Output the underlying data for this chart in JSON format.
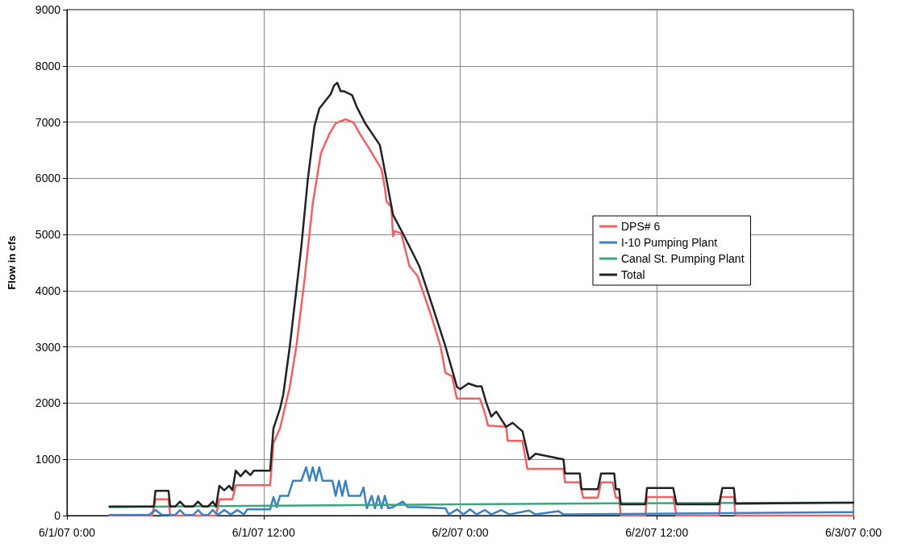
{
  "chart_data": {
    "type": "line",
    "ylabel": "Flow in cfs",
    "xlim": [
      "--06-01T00:00",
      "--06-03T00:00"
    ],
    "xticks": [
      {
        "value": "--06-01T00:00",
        "label": "6/1/07 0:00"
      },
      {
        "value": "--06-01T12:00",
        "label": "6/1/07 12:00"
      },
      {
        "value": "--06-02T00:00",
        "label": "6/2/07 0:00"
      },
      {
        "value": "--06-02T12:00",
        "label": "6/2/07 12:00"
      },
      {
        "value": "--06-03T00:00",
        "label": "6/3/07 0:00"
      }
    ],
    "ylim": [
      0,
      9000
    ],
    "yticks": [
      0,
      1000,
      2000,
      3000,
      4000,
      5000,
      6000,
      7000,
      8000,
      9000
    ],
    "grid": true,
    "legend": "right",
    "marker": "none",
    "line_style": "solid",
    "series": [
      {
        "name": "DPS# 6",
        "color": "#f65f5f",
        "x": [
          "--06-01T02:36",
          "--06-01T05:12",
          "--06-01T05:24",
          "--06-01T06:12",
          "--06-01T06:18",
          "--06-01T09:06",
          "--06-01T09:18",
          "--06-01T10:06",
          "--06-01T10:18",
          "--06-01T12:24",
          "--06-01T12:36",
          "--06-01T13:00",
          "--06-01T13:36",
          "--06-01T14:00",
          "--06-01T14:30",
          "--06-01T15:00",
          "--06-01T15:30",
          "--06-01T16:00",
          "--06-01T16:24",
          "--06-01T17:00",
          "--06-01T17:30",
          "--06-01T17:54",
          "--06-01T18:24",
          "--06-01T19:12",
          "--06-01T19:24",
          "--06-01T19:30",
          "--06-01T19:48",
          "--06-01T19:54",
          "--06-01T20:00",
          "--06-01T20:24",
          "--06-01T20:54",
          "--06-01T21:24",
          "--06-01T22:12",
          "--06-01T22:48",
          "--06-01T23:06",
          "--06-01T23:30",
          "--06-01T23:48",
          "--06-02T01:12",
          "--06-02T01:30",
          "--06-02T01:42",
          "--06-02T02:48",
          "--06-02T02:54",
          "--06-02T03:48",
          "--06-02T04:06",
          "--06-02T06:18",
          "--06-02T06:24",
          "--06-02T07:18",
          "--06-02T07:30",
          "--06-02T08:24",
          "--06-02T08:36",
          "--06-02T09:18",
          "--06-02T09:30",
          "--06-02T09:42",
          "--06-02T09:48",
          "--06-02T11:18",
          "--06-02T11:24",
          "--06-02T13:00",
          "--06-02T13:12",
          "--06-02T15:48",
          "--06-02T15:54",
          "--06-02T16:42",
          "--06-02T16:48",
          "--06-03T00:00"
        ],
        "values": [
          0,
          0,
          290,
          290,
          0,
          0,
          290,
          290,
          540,
          540,
          1290,
          1550,
          2290,
          3010,
          4200,
          5550,
          6450,
          6780,
          6980,
          7050,
          6990,
          6780,
          6550,
          6160,
          5830,
          5590,
          5490,
          4970,
          5060,
          5020,
          4440,
          4260,
          3580,
          3010,
          2540,
          2480,
          2080,
          2080,
          1830,
          1600,
          1580,
          1330,
          1330,
          830,
          830,
          590,
          590,
          320,
          320,
          590,
          590,
          320,
          320,
          0,
          0,
          330,
          330,
          0,
          0,
          330,
          330,
          0,
          0
        ]
      },
      {
        "name": "I-10 Pumping Plant",
        "color": "#3a80c4",
        "x": [
          "--06-01T02:36",
          "--06-01T05:00",
          "--06-01T05:24",
          "--06-01T05:48",
          "--06-01T06:36",
          "--06-01T06:54",
          "--06-01T07:12",
          "--06-01T07:42",
          "--06-01T08:00",
          "--06-01T08:18",
          "--06-01T08:36",
          "--06-01T08:54",
          "--06-01T09:12",
          "--06-01T09:36",
          "--06-01T10:00",
          "--06-01T10:24",
          "--06-01T10:48",
          "--06-01T11:00",
          "--06-01T12:24",
          "--06-01T12:36",
          "--06-01T12:48",
          "--06-01T13:00",
          "--06-01T13:30",
          "--06-01T13:48",
          "--06-01T14:18",
          "--06-01T14:36",
          "--06-01T14:48",
          "--06-01T15:00",
          "--06-01T15:12",
          "--06-01T15:24",
          "--06-01T15:36",
          "--06-01T16:12",
          "--06-01T16:24",
          "--06-01T16:36",
          "--06-01T16:48",
          "--06-01T17:00",
          "--06-01T17:12",
          "--06-01T17:54",
          "--06-01T18:06",
          "--06-01T18:18",
          "--06-01T18:36",
          "--06-01T18:48",
          "--06-01T19:00",
          "--06-01T19:12",
          "--06-01T19:24",
          "--06-01T19:36",
          "--06-01T19:54",
          "--06-01T20:30",
          "--06-01T20:48",
          "--06-01T21:30",
          "--06-01T23:06",
          "--06-01T23:18",
          "--06-01T23:48",
          "--06-02T00:12",
          "--06-02T00:36",
          "--06-02T01:00",
          "--06-02T01:30",
          "--06-02T01:54",
          "--06-02T02:30",
          "--06-02T03:00",
          "--06-02T04:12",
          "--06-02T04:36",
          "--06-02T06:00",
          "--06-02T06:18",
          "--06-02T09:48",
          "--06-03T00:00"
        ],
        "values": [
          10,
          10,
          100,
          10,
          10,
          100,
          10,
          10,
          100,
          10,
          10,
          100,
          10,
          100,
          20,
          100,
          20,
          110,
          110,
          330,
          150,
          350,
          350,
          620,
          620,
          860,
          620,
          860,
          620,
          860,
          620,
          620,
          350,
          620,
          350,
          620,
          350,
          350,
          500,
          130,
          350,
          130,
          350,
          130,
          350,
          130,
          150,
          250,
          150,
          150,
          130,
          20,
          110,
          20,
          110,
          20,
          100,
          20,
          100,
          20,
          90,
          20,
          80,
          20,
          30,
          60
        ]
      },
      {
        "name": "Canal St. Pumping Plant",
        "color": "#3aa67c",
        "x": [
          "--06-01T02:36",
          "--06-01T09:12",
          "--06-02T00:00",
          "--06-02T09:48",
          "--06-03T00:00"
        ],
        "values": [
          150,
          170,
          200,
          220,
          230
        ]
      },
      {
        "name": "Total",
        "color": "#222222",
        "x": [
          "--06-01T02:36",
          "--06-01T05:18",
          "--06-01T05:24",
          "--06-01T06:12",
          "--06-01T06:18",
          "--06-01T06:36",
          "--06-01T06:54",
          "--06-01T07:12",
          "--06-01T07:42",
          "--06-01T08:00",
          "--06-01T08:18",
          "--06-01T08:36",
          "--06-01T08:54",
          "--06-01T09:06",
          "--06-01T09:18",
          "--06-01T09:36",
          "--06-01T09:54",
          "--06-01T10:06",
          "--06-01T10:18",
          "--06-01T10:36",
          "--06-01T10:54",
          "--06-01T11:12",
          "--06-01T11:24",
          "--06-01T12:24",
          "--06-01T12:36",
          "--06-01T13:00",
          "--06-01T13:12",
          "--06-01T13:36",
          "--06-01T14:18",
          "--06-01T14:42",
          "--06-01T15:06",
          "--06-01T15:24",
          "--06-01T16:06",
          "--06-01T16:18",
          "--06-01T16:30",
          "--06-01T16:42",
          "--06-01T16:54",
          "--06-01T17:24",
          "--06-01T17:42",
          "--06-01T18:12",
          "--06-01T19:06",
          "--06-01T19:30",
          "--06-01T19:54",
          "--06-01T20:30",
          "--06-01T21:30",
          "--06-01T22:18",
          "--06-01T23:06",
          "--06-01T23:48",
          "--06-02T00:00",
          "--06-02T00:30",
          "--06-02T01:00",
          "--06-02T01:18",
          "--06-02T01:36",
          "--06-02T01:54",
          "--06-02T02:12",
          "--06-02T02:48",
          "--06-02T03:12",
          "--06-02T03:48",
          "--06-02T04:12",
          "--06-02T04:36",
          "--06-02T06:18",
          "--06-02T06:24",
          "--06-02T07:18",
          "--06-02T07:24",
          "--06-02T08:24",
          "--06-02T08:36",
          "--06-02T09:24",
          "--06-02T09:30",
          "--06-02T09:42",
          "--06-02T09:48",
          "--06-02T11:18",
          "--06-02T11:24",
          "--06-02T13:00",
          "--06-02T13:12",
          "--06-02T15:48",
          "--06-02T16:00",
          "--06-02T16:42",
          "--06-02T16:48",
          "--06-03T00:00"
        ],
        "values": [
          160,
          160,
          440,
          440,
          160,
          160,
          250,
          160,
          160,
          250,
          160,
          160,
          250,
          160,
          530,
          450,
          530,
          450,
          800,
          700,
          800,
          720,
          800,
          800,
          1550,
          1900,
          2150,
          3010,
          4770,
          5980,
          6920,
          7240,
          7500,
          7650,
          7700,
          7550,
          7550,
          7480,
          7260,
          6980,
          6590,
          5980,
          5350,
          5020,
          4440,
          3730,
          3010,
          2290,
          2250,
          2350,
          2300,
          2300,
          2000,
          1760,
          1850,
          1580,
          1650,
          1500,
          1000,
          1100,
          1000,
          750,
          750,
          470,
          470,
          750,
          750,
          470,
          470,
          200,
          200,
          490,
          490,
          200,
          200,
          490,
          490,
          210,
          230
        ]
      }
    ]
  }
}
